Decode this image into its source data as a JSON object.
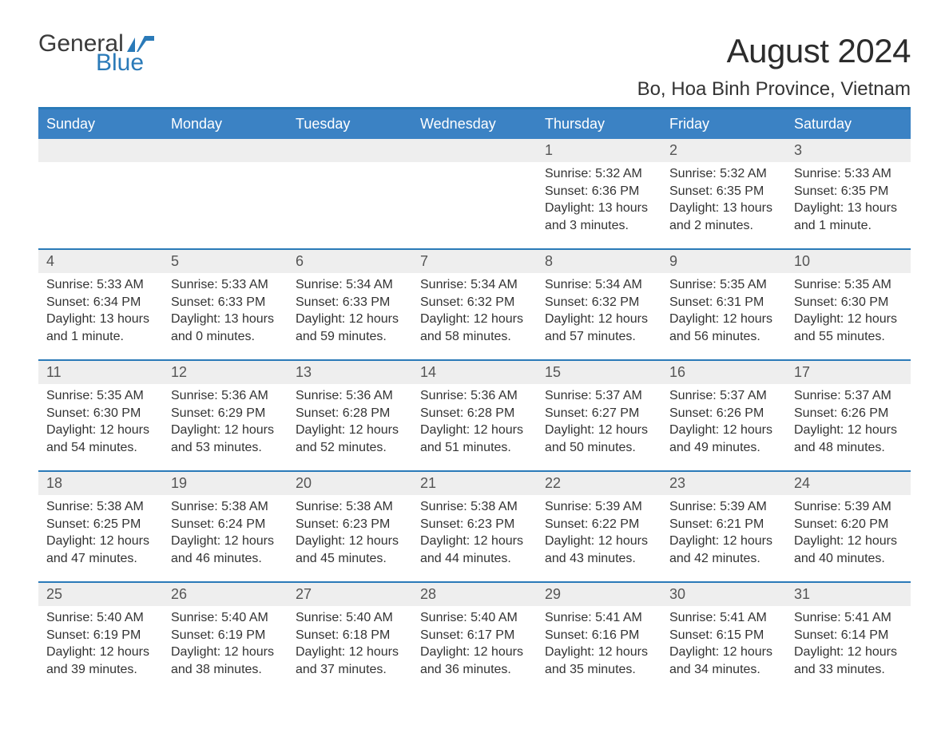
{
  "colors": {
    "header_bg": "#3b82c4",
    "accent_border": "#2a7ab8",
    "daynum_bg": "#eeeeee",
    "page_bg": "#ffffff",
    "text": "#333333",
    "daynum_text": "#555555",
    "logo_dark": "#3a3a3a",
    "logo_blue": "#2a7ab8",
    "dow_text": "#ffffff"
  },
  "typography": {
    "month_title_pt": 42,
    "location_pt": 24,
    "dow_pt": 18,
    "daynum_pt": 18,
    "detail_pt": 16,
    "logo_pt": 30,
    "family": "Arial"
  },
  "layout": {
    "columns": 7,
    "column_headers": [
      "Sunday",
      "Monday",
      "Tuesday",
      "Wednesday",
      "Thursday",
      "Friday",
      "Saturday"
    ]
  },
  "logo": {
    "general": "General",
    "blue": "Blue",
    "flag_color": "#2a7ab8"
  },
  "title": {
    "month": "August 2024",
    "location": "Bo, Hoa Binh Province, Vietnam"
  },
  "dow": [
    "Sunday",
    "Monday",
    "Tuesday",
    "Wednesday",
    "Thursday",
    "Friday",
    "Saturday"
  ],
  "weeks": [
    [
      null,
      null,
      null,
      null,
      {
        "n": "1",
        "sunrise": "Sunrise: 5:32 AM",
        "sunset": "Sunset: 6:36 PM",
        "day": "Daylight: 13 hours and 3 minutes."
      },
      {
        "n": "2",
        "sunrise": "Sunrise: 5:32 AM",
        "sunset": "Sunset: 6:35 PM",
        "day": "Daylight: 13 hours and 2 minutes."
      },
      {
        "n": "3",
        "sunrise": "Sunrise: 5:33 AM",
        "sunset": "Sunset: 6:35 PM",
        "day": "Daylight: 13 hours and 1 minute."
      }
    ],
    [
      {
        "n": "4",
        "sunrise": "Sunrise: 5:33 AM",
        "sunset": "Sunset: 6:34 PM",
        "day": "Daylight: 13 hours and 1 minute."
      },
      {
        "n": "5",
        "sunrise": "Sunrise: 5:33 AM",
        "sunset": "Sunset: 6:33 PM",
        "day": "Daylight: 13 hours and 0 minutes."
      },
      {
        "n": "6",
        "sunrise": "Sunrise: 5:34 AM",
        "sunset": "Sunset: 6:33 PM",
        "day": "Daylight: 12 hours and 59 minutes."
      },
      {
        "n": "7",
        "sunrise": "Sunrise: 5:34 AM",
        "sunset": "Sunset: 6:32 PM",
        "day": "Daylight: 12 hours and 58 minutes."
      },
      {
        "n": "8",
        "sunrise": "Sunrise: 5:34 AM",
        "sunset": "Sunset: 6:32 PM",
        "day": "Daylight: 12 hours and 57 minutes."
      },
      {
        "n": "9",
        "sunrise": "Sunrise: 5:35 AM",
        "sunset": "Sunset: 6:31 PM",
        "day": "Daylight: 12 hours and 56 minutes."
      },
      {
        "n": "10",
        "sunrise": "Sunrise: 5:35 AM",
        "sunset": "Sunset: 6:30 PM",
        "day": "Daylight: 12 hours and 55 minutes."
      }
    ],
    [
      {
        "n": "11",
        "sunrise": "Sunrise: 5:35 AM",
        "sunset": "Sunset: 6:30 PM",
        "day": "Daylight: 12 hours and 54 minutes."
      },
      {
        "n": "12",
        "sunrise": "Sunrise: 5:36 AM",
        "sunset": "Sunset: 6:29 PM",
        "day": "Daylight: 12 hours and 53 minutes."
      },
      {
        "n": "13",
        "sunrise": "Sunrise: 5:36 AM",
        "sunset": "Sunset: 6:28 PM",
        "day": "Daylight: 12 hours and 52 minutes."
      },
      {
        "n": "14",
        "sunrise": "Sunrise: 5:36 AM",
        "sunset": "Sunset: 6:28 PM",
        "day": "Daylight: 12 hours and 51 minutes."
      },
      {
        "n": "15",
        "sunrise": "Sunrise: 5:37 AM",
        "sunset": "Sunset: 6:27 PM",
        "day": "Daylight: 12 hours and 50 minutes."
      },
      {
        "n": "16",
        "sunrise": "Sunrise: 5:37 AM",
        "sunset": "Sunset: 6:26 PM",
        "day": "Daylight: 12 hours and 49 minutes."
      },
      {
        "n": "17",
        "sunrise": "Sunrise: 5:37 AM",
        "sunset": "Sunset: 6:26 PM",
        "day": "Daylight: 12 hours and 48 minutes."
      }
    ],
    [
      {
        "n": "18",
        "sunrise": "Sunrise: 5:38 AM",
        "sunset": "Sunset: 6:25 PM",
        "day": "Daylight: 12 hours and 47 minutes."
      },
      {
        "n": "19",
        "sunrise": "Sunrise: 5:38 AM",
        "sunset": "Sunset: 6:24 PM",
        "day": "Daylight: 12 hours and 46 minutes."
      },
      {
        "n": "20",
        "sunrise": "Sunrise: 5:38 AM",
        "sunset": "Sunset: 6:23 PM",
        "day": "Daylight: 12 hours and 45 minutes."
      },
      {
        "n": "21",
        "sunrise": "Sunrise: 5:38 AM",
        "sunset": "Sunset: 6:23 PM",
        "day": "Daylight: 12 hours and 44 minutes."
      },
      {
        "n": "22",
        "sunrise": "Sunrise: 5:39 AM",
        "sunset": "Sunset: 6:22 PM",
        "day": "Daylight: 12 hours and 43 minutes."
      },
      {
        "n": "23",
        "sunrise": "Sunrise: 5:39 AM",
        "sunset": "Sunset: 6:21 PM",
        "day": "Daylight: 12 hours and 42 minutes."
      },
      {
        "n": "24",
        "sunrise": "Sunrise: 5:39 AM",
        "sunset": "Sunset: 6:20 PM",
        "day": "Daylight: 12 hours and 40 minutes."
      }
    ],
    [
      {
        "n": "25",
        "sunrise": "Sunrise: 5:40 AM",
        "sunset": "Sunset: 6:19 PM",
        "day": "Daylight: 12 hours and 39 minutes."
      },
      {
        "n": "26",
        "sunrise": "Sunrise: 5:40 AM",
        "sunset": "Sunset: 6:19 PM",
        "day": "Daylight: 12 hours and 38 minutes."
      },
      {
        "n": "27",
        "sunrise": "Sunrise: 5:40 AM",
        "sunset": "Sunset: 6:18 PM",
        "day": "Daylight: 12 hours and 37 minutes."
      },
      {
        "n": "28",
        "sunrise": "Sunrise: 5:40 AM",
        "sunset": "Sunset: 6:17 PM",
        "day": "Daylight: 12 hours and 36 minutes."
      },
      {
        "n": "29",
        "sunrise": "Sunrise: 5:41 AM",
        "sunset": "Sunset: 6:16 PM",
        "day": "Daylight: 12 hours and 35 minutes."
      },
      {
        "n": "30",
        "sunrise": "Sunrise: 5:41 AM",
        "sunset": "Sunset: 6:15 PM",
        "day": "Daylight: 12 hours and 34 minutes."
      },
      {
        "n": "31",
        "sunrise": "Sunrise: 5:41 AM",
        "sunset": "Sunset: 6:14 PM",
        "day": "Daylight: 12 hours and 33 minutes."
      }
    ]
  ]
}
